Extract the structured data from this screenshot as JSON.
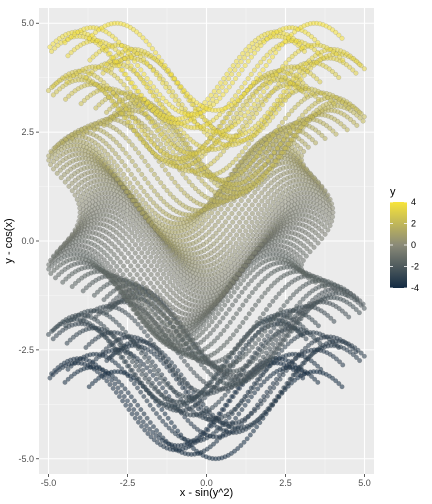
{
  "chart_data": {
    "type": "scatter",
    "title": "",
    "xlabel": "x - sin(y^2)",
    "ylabel": "y - cos(x)",
    "xlim": [
      -5.3,
      5.3
    ],
    "ylim": [
      -5.35,
      5.35
    ],
    "x_ticks": [
      -5.0,
      -2.5,
      0.0,
      2.5,
      5.0
    ],
    "x_tick_labels": [
      "-5.0",
      "-2.5",
      "0.0",
      "2.5",
      "5.0"
    ],
    "y_ticks": [
      -5.0,
      -2.5,
      0.0,
      2.5,
      5.0
    ],
    "y_tick_labels": [
      "-5.0",
      "-2.5",
      "0.0",
      "2.5",
      "5.0"
    ],
    "grid": true,
    "point_alpha": 0.55,
    "point_outline": "#555555",
    "data_generation": {
      "x_range": [
        -4,
        4
      ],
      "y_range": [
        -4,
        4
      ],
      "step": 0.1,
      "x_transform": "x - sin(y^2)",
      "y_transform": "y - cos(x)",
      "color_variable": "y"
    },
    "legend": {
      "title": "y",
      "position": "right",
      "ticks": [
        4,
        2,
        0,
        -2,
        -4
      ],
      "tick_labels": [
        "4",
        "2",
        "0",
        "-2",
        "-4"
      ],
      "color_low": "#132B43",
      "color_mid": "#8a8a78",
      "color_high": "#F7E43A",
      "range": [
        -4,
        4
      ]
    }
  },
  "colors": {
    "panel_bg": "#ebebeb",
    "grid_major": "#ffffff",
    "grid_minor": "#f5f5f5"
  }
}
